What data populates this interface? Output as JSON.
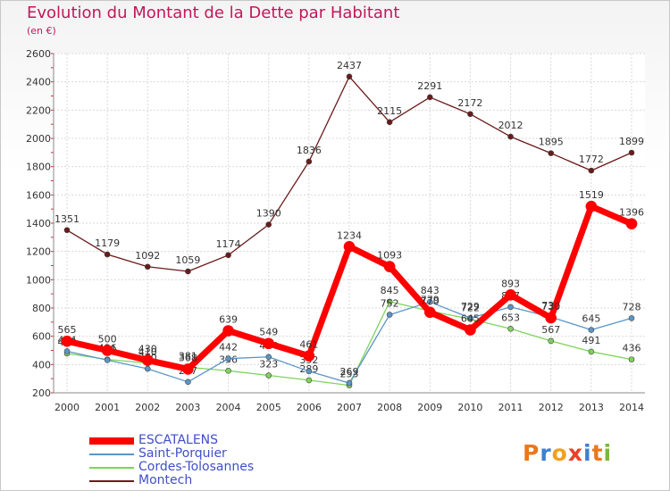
{
  "title": "Evolution du Montant de la Dette par Habitant",
  "subtitle": "(en €)",
  "logo": {
    "text": "Proxiti"
  },
  "chart_data": {
    "type": "line",
    "x": [
      "2000",
      "2001",
      "2002",
      "2003",
      "2004",
      "2005",
      "2006",
      "2007",
      "2008",
      "2009",
      "2010",
      "2011",
      "2012",
      "2013",
      "2014"
    ],
    "ylim": [
      200,
      2600
    ],
    "yticks": [
      "200",
      "400",
      "600",
      "800",
      "1000",
      "1200",
      "1400",
      "1600",
      "1800",
      "2000",
      "2200",
      "2400",
      "2600"
    ],
    "grid": true,
    "legend_position": "bottom-left",
    "series": [
      {
        "name": "Montech",
        "color": "#6b1a1a",
        "values": [
          1351,
          1179,
          1092,
          1059,
          1174,
          1390,
          1836,
          2437,
          2115,
          2291,
          2172,
          2012,
          1895,
          1772,
          1899
        ],
        "labels": [
          "1351",
          "1179",
          "1092",
          "1059",
          "1174",
          "1390",
          "1836",
          "2437",
          "2115",
          "2291",
          "2172",
          "2012",
          "1895",
          "1772",
          "1899"
        ]
      },
      {
        "name": "Cordes-Tolosannes",
        "color": "#7ed35a",
        "values": [
          478,
          436,
          410,
          381,
          356,
          323,
          289,
          253,
          845,
          779,
          722,
          653,
          567,
          491,
          436
        ],
        "labels": [
          "478",
          "436",
          "410",
          "381",
          "356",
          "323",
          "289",
          "253",
          "845",
          "779",
          "722",
          "653",
          "567",
          "491",
          "436"
        ]
      },
      {
        "name": "Saint-Porquier",
        "color": "#5b95c8",
        "values": [
          494,
          431,
          370,
          277,
          442,
          454,
          352,
          269,
          752,
          843,
          729,
          807,
          736,
          645,
          728
        ],
        "labels": [
          "494",
          "431",
          "370",
          "277",
          "442",
          "454",
          "352",
          "269",
          "752",
          "843",
          "729",
          "807",
          "736",
          "645",
          "728"
        ]
      },
      {
        "name": "ESCATALENS",
        "color": "#ff0000",
        "values": [
          565,
          500,
          430,
          368,
          639,
          549,
          461,
          1234,
          1093,
          770,
          645,
          893,
          730,
          1519,
          1396
        ],
        "labels": [
          "565",
          "500",
          "430",
          "368",
          "639",
          "549",
          "461",
          "1234",
          "1093",
          "770",
          "645",
          "893",
          "730",
          "1519",
          "1396"
        ]
      }
    ],
    "legend_order": [
      "ESCATALENS",
      "Saint-Porquier",
      "Cordes-Tolosannes",
      "Montech"
    ]
  }
}
